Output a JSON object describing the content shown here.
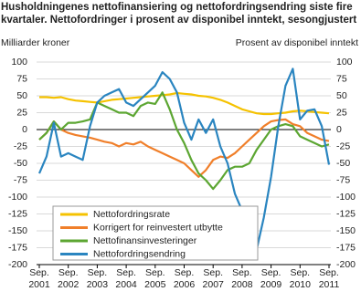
{
  "chart_data": {
    "type": "line",
    "title": [
      "Husholdningenes nettofinansiering og nettofordringsendring siste fire",
      "kvartaler. Nettofordringer i prosent av disponibel inntekt, sesongjustert"
    ],
    "y_label": "Milliarder kroner",
    "y2_label": "Prosent av disponibel inntekt",
    "categories": [
      "Sep. 2001",
      null,
      null,
      null,
      "Sep. 2002",
      null,
      null,
      null,
      "Sep. 2003",
      null,
      null,
      null,
      "Sep. 2004",
      null,
      null,
      null,
      "Sep. 2005",
      null,
      null,
      null,
      "Sep. 2006",
      null,
      null,
      null,
      "Sep. 2007",
      null,
      null,
      null,
      "Sep. 2008",
      null,
      null,
      null,
      "Sep. 2009",
      null,
      null,
      null,
      "Sep. 2010",
      null,
      null,
      null,
      "Sep. 2011"
    ],
    "series": [
      {
        "name": "Nettofordringsrate",
        "color": "#f5c200",
        "axis": "y2",
        "values": [
          48,
          48,
          47,
          48,
          45,
          43,
          42,
          41,
          40,
          42,
          44,
          45,
          46,
          47,
          48,
          49,
          50,
          51,
          52,
          54,
          53,
          52,
          50,
          49,
          47,
          44,
          40,
          35,
          30,
          27,
          24,
          23,
          23,
          24,
          25,
          27,
          28,
          27,
          26,
          25,
          24
        ]
      },
      {
        "name": "Korrigert for reinvestert utbytte",
        "color": "#f07f2a",
        "axis": "y2",
        "values": [
          -15,
          -5,
          12,
          0,
          -5,
          -8,
          -10,
          -12,
          -15,
          -18,
          -20,
          -25,
          -20,
          -22,
          -18,
          -25,
          -30,
          -35,
          -40,
          -45,
          -50,
          -60,
          -70,
          -60,
          -45,
          -40,
          -42,
          -35,
          -25,
          -15,
          -5,
          5,
          12,
          14,
          15,
          8,
          5,
          -5,
          -10,
          -15,
          -17
        ]
      },
      {
        "name": "Nettofinansinvesteringer",
        "color": "#5ca632",
        "values": [
          -15,
          -5,
          12,
          0,
          10,
          10,
          12,
          15,
          40,
          35,
          30,
          25,
          25,
          20,
          35,
          40,
          38,
          55,
          30,
          0,
          -20,
          -45,
          -65,
          -75,
          -88,
          -75,
          -60,
          -55,
          -55,
          -50,
          -30,
          -15,
          0,
          5,
          8,
          5,
          -10,
          -15,
          -20,
          -25,
          -22
        ]
      },
      {
        "name": "Nettofordringsendring",
        "color": "#2a85c0",
        "values": [
          -65,
          -40,
          10,
          -40,
          -35,
          -40,
          -45,
          5,
          40,
          50,
          55,
          60,
          40,
          35,
          45,
          55,
          65,
          85,
          75,
          55,
          10,
          -15,
          15,
          -5,
          15,
          -25,
          -50,
          -95,
          -120,
          -170,
          -178,
          -130,
          -70,
          5,
          65,
          90,
          15,
          28,
          30,
          5,
          -52
        ]
      }
    ],
    "ylim": [
      -200,
      100
    ],
    "yticks": [
      -200,
      -175,
      -150,
      -125,
      -100,
      -75,
      -50,
      -25,
      0,
      25,
      50,
      75,
      100
    ],
    "y2lim": [
      -200,
      100
    ],
    "y2ticks": [
      -200,
      -175,
      -150,
      -125,
      -100,
      -75,
      -50,
      -25,
      0,
      25,
      50,
      75,
      100
    ],
    "grid": true,
    "legend": "lower-left"
  }
}
